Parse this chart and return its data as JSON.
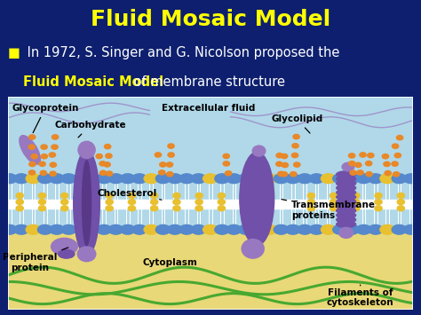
{
  "bg_color": "#0d1f6e",
  "title": "Fluid Mosaic Model",
  "title_color": "#ffff00",
  "title_fontsize": 18,
  "bullet_symbol": "■",
  "bullet_text1": " In 1972, S. Singer and G. Nicolson proposed the",
  "bullet_text2_yellow": "Fluid Mosaic Model",
  "bullet_text2_white": " of membrane structure",
  "bullet_fontsize": 10.5,
  "diagram_top_color": "#b0d8e8",
  "diagram_bot_color": "#e8d878",
  "label_fontsize": 7.5,
  "head_blue": "#5588cc",
  "head_yellow": "#e8c030",
  "protein_purple": "#7050a8",
  "protein_light": "#9878c0",
  "green_filament": "#48a830",
  "carb_orange": "#e88828"
}
